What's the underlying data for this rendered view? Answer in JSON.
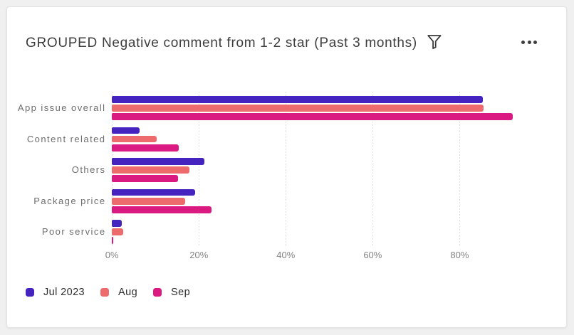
{
  "widget": {
    "title": "GROUPED Negative comment from 1-2 star (Past 3 months)",
    "icons": {
      "filter": "funnel-icon",
      "menu": "ellipsis-icon"
    }
  },
  "chart_data": {
    "type": "bar",
    "orientation": "horizontal",
    "title": "GROUPED Negative comment from 1-2 star (Past 3 months)",
    "categories": [
      "App issue overall",
      "Content related",
      "Others",
      "Package price",
      "Poor service"
    ],
    "series": [
      {
        "name": "Jul 2023",
        "color": "#4523be",
        "values": [
          85.3,
          6.3,
          21.2,
          19.1,
          2.2
        ]
      },
      {
        "name": "Aug",
        "color": "#ee6b6d",
        "values": [
          85.5,
          10.3,
          17.8,
          16.9,
          2.6
        ]
      },
      {
        "name": "Sep",
        "color": "#da1a81",
        "values": [
          92.3,
          15.3,
          15.2,
          22.9,
          0.3
        ]
      }
    ],
    "xlabel": "",
    "ylabel": "",
    "unit": "%",
    "x_ticks": [
      "0%",
      "20%",
      "40%",
      "60%",
      "80%"
    ],
    "x_tick_values": [
      0,
      20,
      40,
      60,
      80
    ],
    "xlim": [
      0,
      100
    ],
    "grid": "vertical-dotted",
    "legend_position": "bottom-left"
  },
  "colors": {
    "page_background": "#f0f0f0",
    "card_background": "#ffffff",
    "card_border": "#e4e4e4",
    "title_text": "#3d3d3d",
    "category_text": "#6d6d6d",
    "tick_text": "#828282",
    "gridline": "#dadada",
    "icon": "#3c3c3c"
  }
}
